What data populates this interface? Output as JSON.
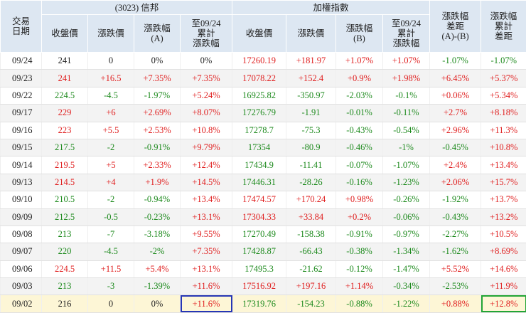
{
  "header": {
    "date_label": "交易\n日期",
    "group_stock": "(3023) 信邦",
    "group_index": "加權指數",
    "stock_cols": [
      "收盤價",
      "漲跌價",
      "漲跌幅\n(A)",
      "至09/24\n累計\n漲跌幅"
    ],
    "index_cols": [
      "收盤價",
      "漲跌價",
      "漲跌幅\n(B)",
      "至09/24\n累計\n漲跌幅"
    ],
    "diff_col": "漲跌幅\n差距\n(A)-(B)",
    "cum_diff_col": "漲跌幅\n累計\n差距"
  },
  "colors": {
    "up": "#e02020",
    "down": "#1d8a1d",
    "header_bg": "#dde7f2",
    "highlight_row": "#fdf6d6",
    "blue_box": "#2636b5",
    "green_box": "#22a535"
  },
  "rows": [
    {
      "date": "09/24",
      "s_close": "241",
      "s_chg": "0",
      "s_pct": "0%",
      "s_cum": "0%",
      "i_close": "17260.19",
      "i_chg": "+181.97",
      "i_pct": "+1.07%",
      "i_cum": "+1.07%",
      "diff": "-1.07%",
      "cum_diff": "-1.07%"
    },
    {
      "date": "09/23",
      "s_close": "241",
      "s_chg": "+16.5",
      "s_pct": "+7.35%",
      "s_cum": "+7.35%",
      "i_close": "17078.22",
      "i_chg": "+152.4",
      "i_pct": "+0.9%",
      "i_cum": "+1.98%",
      "diff": "+6.45%",
      "cum_diff": "+5.37%"
    },
    {
      "date": "09/22",
      "s_close": "224.5",
      "s_chg": "-4.5",
      "s_pct": "-1.97%",
      "s_cum": "+5.24%",
      "i_close": "16925.82",
      "i_chg": "-350.97",
      "i_pct": "-2.03%",
      "i_cum": "-0.1%",
      "diff": "+0.06%",
      "cum_diff": "+5.34%"
    },
    {
      "date": "09/17",
      "s_close": "229",
      "s_chg": "+6",
      "s_pct": "+2.69%",
      "s_cum": "+8.07%",
      "i_close": "17276.79",
      "i_chg": "-1.91",
      "i_pct": "-0.01%",
      "i_cum": "-0.11%",
      "diff": "+2.7%",
      "cum_diff": "+8.18%"
    },
    {
      "date": "09/16",
      "s_close": "223",
      "s_chg": "+5.5",
      "s_pct": "+2.53%",
      "s_cum": "+10.8%",
      "i_close": "17278.7",
      "i_chg": "-75.3",
      "i_pct": "-0.43%",
      "i_cum": "-0.54%",
      "diff": "+2.96%",
      "cum_diff": "+11.3%"
    },
    {
      "date": "09/15",
      "s_close": "217.5",
      "s_chg": "-2",
      "s_pct": "-0.91%",
      "s_cum": "+9.79%",
      "i_close": "17354",
      "i_chg": "-80.9",
      "i_pct": "-0.46%",
      "i_cum": "-1%",
      "diff": "-0.45%",
      "cum_diff": "+10.8%"
    },
    {
      "date": "09/14",
      "s_close": "219.5",
      "s_chg": "+5",
      "s_pct": "+2.33%",
      "s_cum": "+12.4%",
      "i_close": "17434.9",
      "i_chg": "-11.41",
      "i_pct": "-0.07%",
      "i_cum": "-1.07%",
      "diff": "+2.4%",
      "cum_diff": "+13.4%"
    },
    {
      "date": "09/13",
      "s_close": "214.5",
      "s_chg": "+4",
      "s_pct": "+1.9%",
      "s_cum": "+14.5%",
      "i_close": "17446.31",
      "i_chg": "-28.26",
      "i_pct": "-0.16%",
      "i_cum": "-1.23%",
      "diff": "+2.06%",
      "cum_diff": "+15.7%"
    },
    {
      "date": "09/10",
      "s_close": "210.5",
      "s_chg": "-2",
      "s_pct": "-0.94%",
      "s_cum": "+13.4%",
      "i_close": "17474.57",
      "i_chg": "+170.24",
      "i_pct": "+0.98%",
      "i_cum": "-0.26%",
      "diff": "-1.92%",
      "cum_diff": "+13.7%"
    },
    {
      "date": "09/09",
      "s_close": "212.5",
      "s_chg": "-0.5",
      "s_pct": "-0.23%",
      "s_cum": "+13.1%",
      "i_close": "17304.33",
      "i_chg": "+33.84",
      "i_pct": "+0.2%",
      "i_cum": "-0.06%",
      "diff": "-0.43%",
      "cum_diff": "+13.2%"
    },
    {
      "date": "09/08",
      "s_close": "213",
      "s_chg": "-7",
      "s_pct": "-3.18%",
      "s_cum": "+9.55%",
      "i_close": "17270.49",
      "i_chg": "-158.38",
      "i_pct": "-0.91%",
      "i_cum": "-0.97%",
      "diff": "-2.27%",
      "cum_diff": "+10.5%"
    },
    {
      "date": "09/07",
      "s_close": "220",
      "s_chg": "-4.5",
      "s_pct": "-2%",
      "s_cum": "+7.35%",
      "i_close": "17428.87",
      "i_chg": "-66.43",
      "i_pct": "-0.38%",
      "i_cum": "-1.34%",
      "diff": "-1.62%",
      "cum_diff": "+8.69%"
    },
    {
      "date": "09/06",
      "s_close": "224.5",
      "s_chg": "+11.5",
      "s_pct": "+5.4%",
      "s_cum": "+13.1%",
      "i_close": "17495.3",
      "i_chg": "-21.62",
      "i_pct": "-0.12%",
      "i_cum": "-1.47%",
      "diff": "+5.52%",
      "cum_diff": "+14.6%"
    },
    {
      "date": "09/03",
      "s_close": "213",
      "s_chg": "-3",
      "s_pct": "-1.39%",
      "s_cum": "+11.6%",
      "i_close": "17516.92",
      "i_chg": "+197.16",
      "i_pct": "+1.14%",
      "i_cum": "-0.34%",
      "diff": "-2.53%",
      "cum_diff": "+11.9%"
    },
    {
      "date": "09/02",
      "s_close": "216",
      "s_chg": "0",
      "s_pct": "0%",
      "s_cum": "+11.6%",
      "i_close": "17319.76",
      "i_chg": "-154.23",
      "i_pct": "-0.88%",
      "i_cum": "-1.22%",
      "diff": "+0.88%",
      "cum_diff": "+12.8%"
    }
  ]
}
